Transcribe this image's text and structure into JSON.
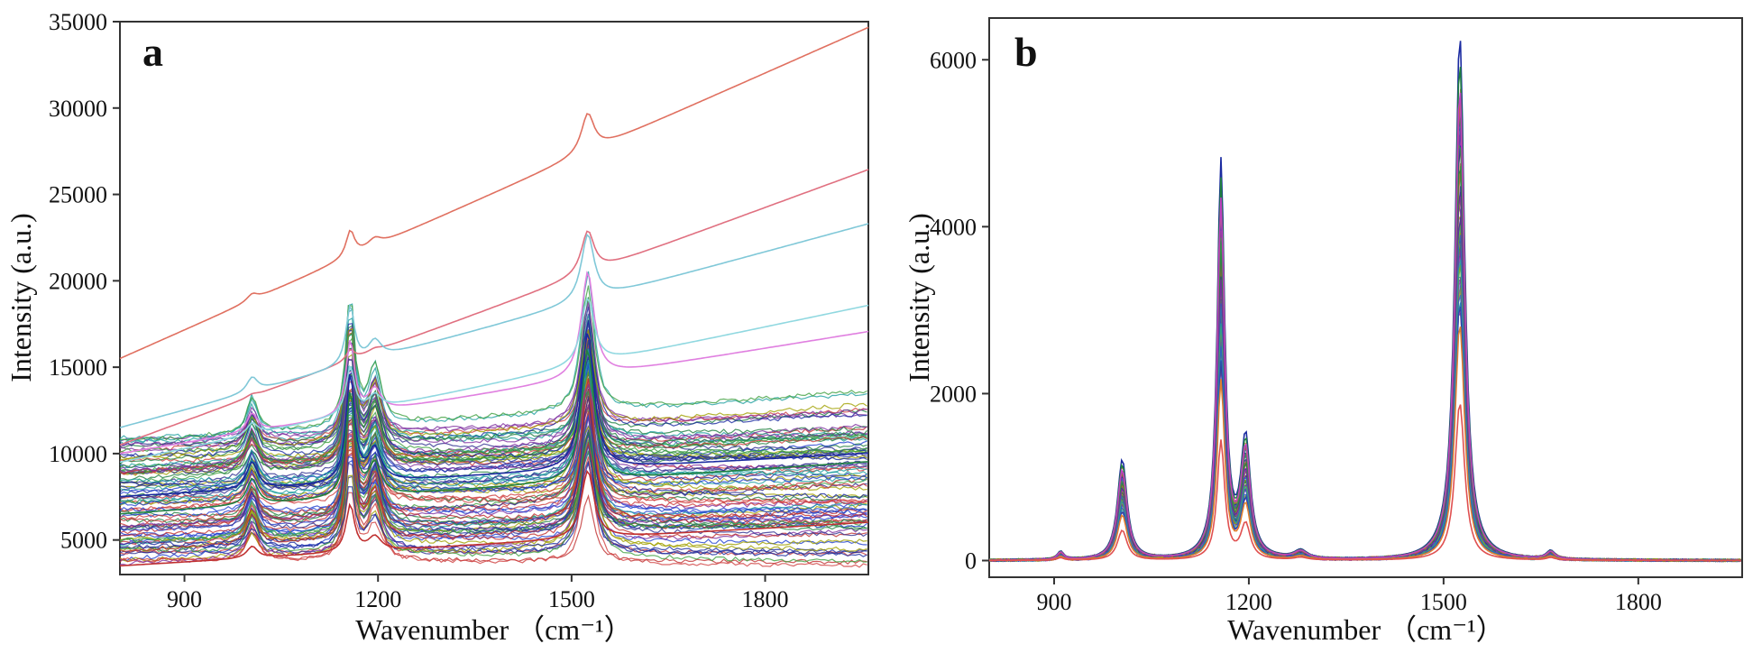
{
  "chart_data": [
    {
      "panel": "a",
      "type": "line",
      "xlabel": "Wavenumber",
      "xlabel_unit": "（cm⁻¹）",
      "ylabel": "Intensity (a.u.)",
      "xlim": [
        800,
        1960
      ],
      "ylim": [
        3000,
        35000
      ],
      "xticks": [
        900,
        1200,
        1500,
        1800
      ],
      "yticks": [
        5000,
        10000,
        15000,
        20000,
        25000,
        30000,
        35000
      ],
      "grid": false,
      "legend": "none",
      "peaks_cm-1": [
        1005,
        1157,
        1195,
        1525
      ],
      "series_count_shown": "many overlapping spectra",
      "series": [
        {
          "color": "#e07060",
          "values_at": {
            "800": 15500,
            "1000": 18900,
            "1157": 22900,
            "1200": 21000,
            "1400": 23300,
            "1525": 29700,
            "1600": 27000,
            "1800": 32000,
            "1950": 34500
          }
        },
        {
          "color": "#e07080",
          "values_at": {
            "800": 10500,
            "1157": 16000,
            "1525": 22900,
            "1950": 26300
          }
        },
        {
          "color": "#80c8d8",
          "values_at": {
            "800": 11500,
            "1157": 18500,
            "1525": 22700,
            "1950": 23200
          }
        },
        {
          "color": "#e080e0",
          "values_at": {
            "800": 10000,
            "1157": 16500,
            "1525": 20500,
            "1950": 17000
          }
        },
        {
          "color": "#90d8e0",
          "values_at": {
            "800": 9500,
            "1157": 15000,
            "1525": 19000,
            "1950": 18500
          }
        },
        {
          "color": "#1a2aa0",
          "values_at": {
            "800": 7500,
            "1157": 14500,
            "1525": 17000,
            "1950": 10000
          }
        },
        {
          "color": "#208040",
          "values_at": {
            "800": 6500,
            "1157": 13500,
            "1525": 16000,
            "1950": 9500
          }
        },
        {
          "color": "#c03030",
          "values_at": {
            "800": 3500,
            "1157": 7000,
            "1525": 9000,
            "1950": 6000
          }
        }
      ]
    },
    {
      "panel": "b",
      "type": "line",
      "xlabel": "Wavenumber",
      "xlabel_unit": "（cm⁻¹）",
      "ylabel": "Intensity (a.u.)",
      "xlim": [
        800,
        1960
      ],
      "ylim": [
        -200,
        6500
      ],
      "xticks": [
        900,
        1200,
        1500,
        1800
      ],
      "yticks": [
        0,
        2000,
        4000,
        6000
      ],
      "grid": false,
      "legend": "none",
      "peaks": [
        {
          "x": 910,
          "height": 100
        },
        {
          "x": 1005,
          "height": 1200
        },
        {
          "x": 1157,
          "height": 4750
        },
        {
          "x": 1195,
          "height": 1400
        },
        {
          "x": 1280,
          "height": 100
        },
        {
          "x": 1525,
          "height": 6300
        },
        {
          "x": 1665,
          "height": 100
        }
      ],
      "series_count_shown": "many overlapping spectra",
      "series": [
        {
          "color": "#1a2aa0",
          "scale": 1.0
        },
        {
          "color": "#208040",
          "scale": 0.95
        },
        {
          "color": "#c040c0",
          "scale": 0.9
        },
        {
          "color": "#e08030",
          "scale": 0.45
        },
        {
          "color": "#e05050",
          "scale": 0.3
        }
      ]
    }
  ],
  "labels": {
    "panel_a": "a",
    "panel_b": "b"
  },
  "colors": {
    "frame": "#333333",
    "background": "#ffffff"
  }
}
